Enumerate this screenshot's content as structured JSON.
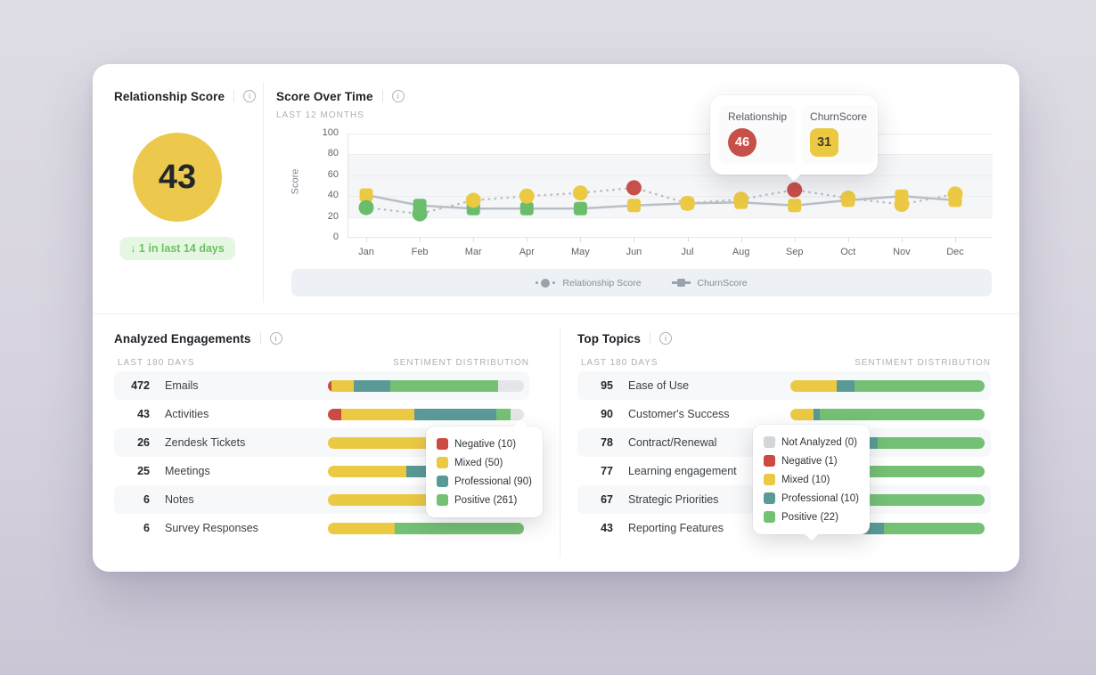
{
  "colors": {
    "sentiment": {
      "not_analyzed": "#e3e5e8",
      "negative": "#cb4b42",
      "mixed": "#ecc943",
      "professional": "#599a96",
      "positive": "#74c074"
    },
    "markers": {
      "green": "#6abd6a",
      "yellow": "#ecc943",
      "red": "#c75049"
    },
    "line": "#b9bfc6",
    "score_circle": "#ecc94d"
  },
  "relationship_card": {
    "title": "Relationship Score",
    "score": "43",
    "badge": "↓ 1 in last 14 days"
  },
  "score_chart": {
    "title": "Score Over Time",
    "subtitle": "LAST 12 MONTHS",
    "tooltip": {
      "items": [
        {
          "label": "Relationship",
          "value": "46",
          "shape": "circle",
          "color": "#c75049",
          "text_color": "#ffffff"
        },
        {
          "label": "ChurnScore",
          "value": "31",
          "shape": "square",
          "color": "#ecc943",
          "text_color": "#46402a"
        }
      ]
    },
    "legend": [
      {
        "name": "Relationship Score",
        "marker": "dotted-circle"
      },
      {
        "name": "ChurnScore",
        "marker": "solid-square"
      }
    ],
    "chart_data": {
      "type": "line",
      "x": [
        "Jan",
        "Feb",
        "Mar",
        "Apr",
        "May",
        "Jun",
        "Jul",
        "Aug",
        "Sep",
        "Oct",
        "Nov",
        "Dec"
      ],
      "ylim": [
        0,
        100
      ],
      "ylabel": "Score",
      "yticks": [
        100,
        80,
        60,
        40,
        20,
        0
      ],
      "series": [
        {
          "name": "Relationship Score",
          "style": "dotted",
          "marker": "circle",
          "values": [
            29,
            23,
            36,
            40,
            43,
            48,
            33,
            37,
            46,
            38,
            32,
            42
          ],
          "point_colors": [
            "green",
            "green",
            "yellow",
            "yellow",
            "yellow",
            "red",
            "yellow",
            "yellow",
            "red",
            "yellow",
            "yellow",
            "yellow"
          ]
        },
        {
          "name": "ChurnScore",
          "style": "solid",
          "marker": "square",
          "values": [
            41,
            31,
            28,
            28,
            28,
            31,
            33,
            34,
            31,
            36,
            40,
            36
          ],
          "point_colors": [
            "yellow",
            "green",
            "green",
            "green",
            "green",
            "yellow",
            "yellow",
            "yellow",
            "yellow",
            "yellow",
            "yellow",
            "yellow"
          ]
        }
      ]
    }
  },
  "engagements": {
    "title": "Analyzed Engagements",
    "period": "LAST 180 DAYS",
    "dist_header": "SENTIMENT DISTRIBUTION",
    "rows": [
      {
        "count": "472",
        "label": "Emails",
        "segments": [
          [
            "negative",
            2
          ],
          [
            "mixed",
            11
          ],
          [
            "professional",
            19
          ],
          [
            "positive",
            55
          ],
          [
            "not_analyzed",
            13
          ]
        ]
      },
      {
        "count": "43",
        "label": "Activities",
        "segments": [
          [
            "negative",
            7
          ],
          [
            "mixed",
            37
          ],
          [
            "professional",
            42
          ],
          [
            "positive",
            7
          ],
          [
            "not_analyzed",
            7
          ]
        ]
      },
      {
        "count": "26",
        "label": "Zendesk Tickets",
        "segments": [
          [
            "mixed",
            100
          ]
        ]
      },
      {
        "count": "25",
        "label": "Meetings",
        "segments": [
          [
            "mixed",
            40
          ],
          [
            "professional",
            60
          ]
        ]
      },
      {
        "count": "6",
        "label": "Notes",
        "segments": [
          [
            "mixed",
            50
          ],
          [
            "professional",
            50
          ]
        ]
      },
      {
        "count": "6",
        "label": "Survey Responses",
        "segments": [
          [
            "mixed",
            34
          ],
          [
            "positive",
            66
          ]
        ]
      }
    ],
    "tooltip": {
      "items": [
        {
          "color": "#cb4b42",
          "label": "Negative (10)"
        },
        {
          "color": "#ecc943",
          "label": "Mixed (50)"
        },
        {
          "color": "#599a96",
          "label": "Professional (90)"
        },
        {
          "color": "#74c074",
          "label": "Positive (261)"
        }
      ]
    }
  },
  "topics": {
    "title": "Top Topics",
    "period": "LAST 180 DAYS",
    "dist_header": "SENTIMENT DISTRIBUTION",
    "rows": [
      {
        "count": "95",
        "label": "Ease of Use",
        "segments": [
          [
            "mixed",
            24
          ],
          [
            "professional",
            9
          ],
          [
            "positive",
            67
          ]
        ]
      },
      {
        "count": "90",
        "label": "Customer's Success",
        "segments": [
          [
            "mixed",
            12
          ],
          [
            "professional",
            3
          ],
          [
            "positive",
            85
          ]
        ]
      },
      {
        "count": "78",
        "label": "Contract/Renewal",
        "segments": [
          [
            "mixed",
            15
          ],
          [
            "professional",
            30
          ],
          [
            "positive",
            55
          ]
        ]
      },
      {
        "count": "77",
        "label": "Learning engagement",
        "segments": [
          [
            "mixed",
            8
          ],
          [
            "positive",
            92
          ]
        ]
      },
      {
        "count": "67",
        "label": "Strategic Priorities",
        "segments": [
          [
            "mixed",
            12
          ],
          [
            "professional",
            28
          ],
          [
            "positive",
            60
          ]
        ]
      },
      {
        "count": "43",
        "label": "Reporting Features",
        "segments": [
          [
            "negative",
            3
          ],
          [
            "mixed",
            22
          ],
          [
            "professional",
            23
          ],
          [
            "positive",
            52
          ]
        ]
      }
    ],
    "tooltip": {
      "items": [
        {
          "color": "#d2d5d9",
          "label": "Not Analyzed (0)"
        },
        {
          "color": "#cb4b42",
          "label": "Negative (1)"
        },
        {
          "color": "#ecc943",
          "label": "Mixed (10)"
        },
        {
          "color": "#599a96",
          "label": "Professional (10)"
        },
        {
          "color": "#74c074",
          "label": "Positive (22)"
        }
      ]
    }
  }
}
